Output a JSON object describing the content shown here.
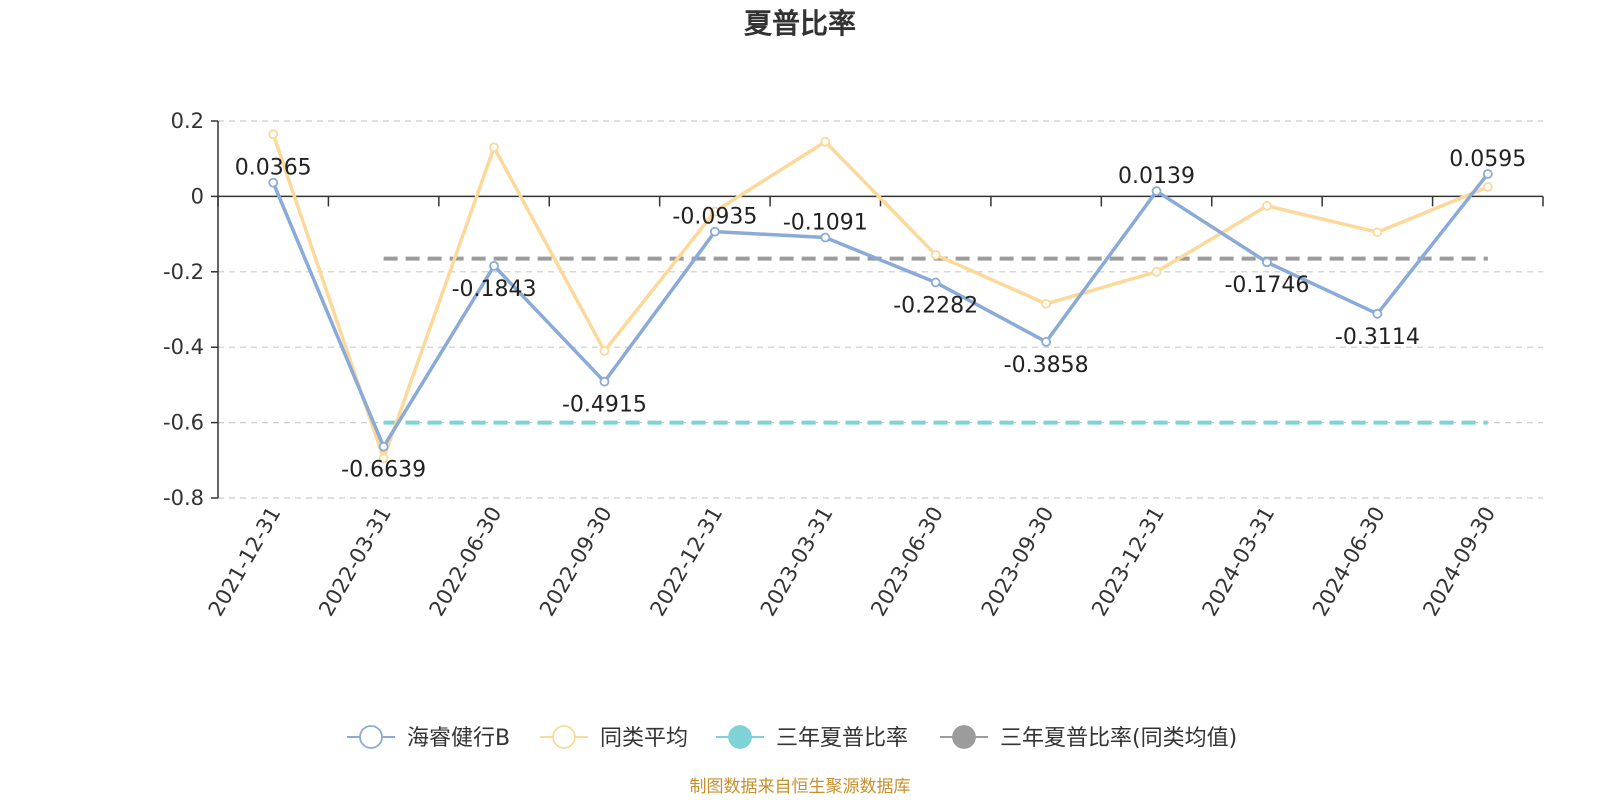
{
  "chart_data": {
    "type": "line",
    "title": "夏普比率",
    "categories": [
      "2021-12-31",
      "2022-03-31",
      "2022-06-30",
      "2022-09-30",
      "2022-12-31",
      "2023-03-31",
      "2023-06-30",
      "2023-09-30",
      "2023-12-31",
      "2024-03-31",
      "2024-06-30",
      "2024-09-30"
    ],
    "y_ticks": [
      "0.2",
      "0",
      "-0.2",
      "-0.4",
      "-0.6",
      "-0.8"
    ],
    "ylim": [
      -0.8,
      0.2
    ],
    "grid": true,
    "legend_position": "bottom",
    "series": [
      {
        "name": "海睿健行B",
        "color": "#8aaad8",
        "values": [
          0.0365,
          -0.6639,
          -0.1843,
          -0.4915,
          -0.0935,
          -0.1091,
          -0.2282,
          -0.3858,
          0.0139,
          -0.1746,
          -0.3114,
          0.0595
        ],
        "labels": [
          "0.0365",
          "-0.6639",
          "-0.1843",
          "-0.4915",
          "-0.0935",
          "-0.1091",
          "-0.2282",
          "-0.3858",
          "0.0139",
          "-0.1746",
          "-0.3114",
          "0.0595"
        ]
      },
      {
        "name": "同类平均",
        "color": "#fcd99a",
        "values": [
          0.165,
          -0.695,
          0.13,
          -0.41,
          -0.04,
          0.145,
          -0.155,
          -0.285,
          -0.2,
          -0.025,
          -0.095,
          0.025
        ]
      },
      {
        "name": "三年夏普比率",
        "color": "#7fd3d6",
        "value": -0.6
      },
      {
        "name": "三年夏普比率(同类均值)",
        "color": "#9c9c9c",
        "value": -0.165
      }
    ],
    "source_note": "制图数据来自恒生聚源数据库"
  }
}
